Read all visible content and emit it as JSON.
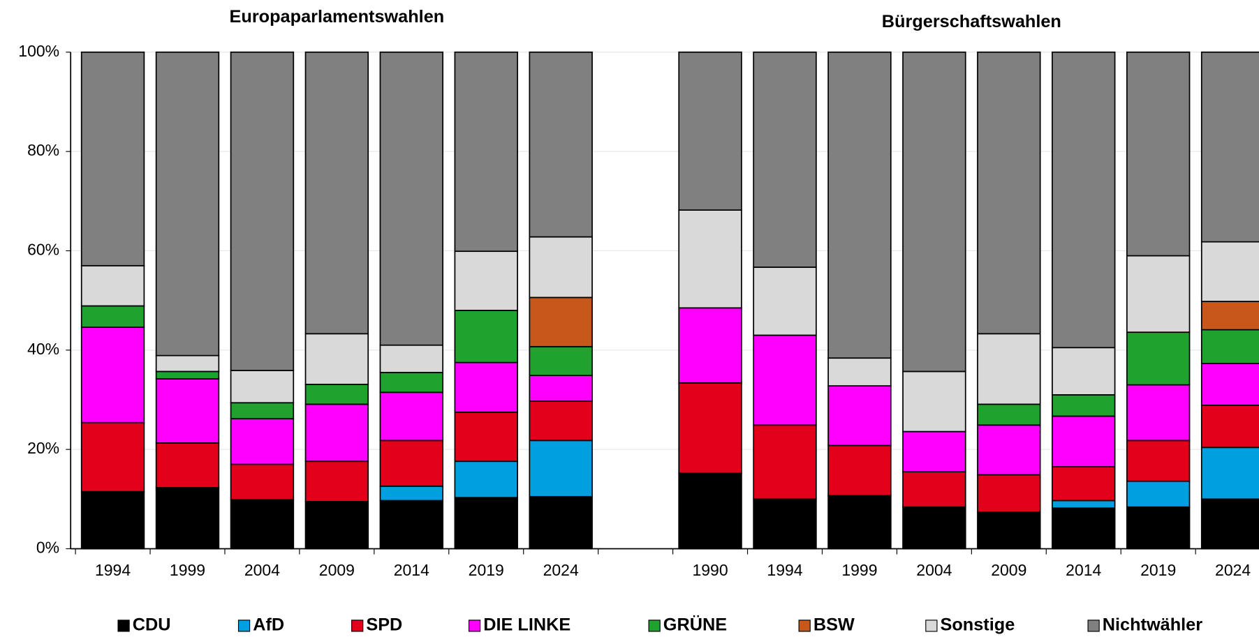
{
  "chart_data": {
    "type": "stacked_bar",
    "group_titles": [
      "Europaparlamentswahlen",
      "Bürgerschaftswahlen"
    ],
    "categories": [
      "1994",
      "1999",
      "2004",
      "2009",
      "2014",
      "2019",
      "2024",
      null,
      "1990",
      "1994",
      "1999",
      "2004",
      "2009",
      "2014",
      "2019",
      "2024"
    ],
    "series": [
      {
        "name": "CDU",
        "color": "#000000",
        "values": [
          11.5,
          12.3,
          9.9,
          9.5,
          9.7,
          10.3,
          10.5,
          null,
          15.2,
          10.0,
          10.7,
          8.4,
          7.4,
          8.2,
          8.4,
          10.0
        ]
      },
      {
        "name": "AfD",
        "color": "#00a0e0",
        "values": [
          null,
          null,
          null,
          null,
          2.9,
          7.3,
          11.3,
          null,
          null,
          null,
          null,
          null,
          null,
          1.5,
          5.2,
          10.4
        ]
      },
      {
        "name": "SPD",
        "color": "#e2001a",
        "values": [
          13.9,
          9.0,
          7.1,
          8.1,
          9.2,
          9.9,
          7.9,
          null,
          18.2,
          14.9,
          10.1,
          7.1,
          7.5,
          6.8,
          8.2,
          8.5
        ]
      },
      {
        "name": "DIE LINKE",
        "color": "#ff00ff",
        "values": [
          19.2,
          12.9,
          9.2,
          11.5,
          9.7,
          10.0,
          5.2,
          null,
          15.1,
          18.1,
          12.0,
          8.1,
          10.0,
          10.2,
          11.2,
          8.4
        ]
      },
      {
        "name": "GRÜNE",
        "color": "#1fa22e",
        "values": [
          4.3,
          1.5,
          3.2,
          4.0,
          4.0,
          10.5,
          5.8,
          null,
          null,
          null,
          null,
          null,
          4.2,
          4.3,
          10.6,
          6.8
        ]
      },
      {
        "name": "BSW",
        "color": "#c8571b",
        "values": [
          null,
          null,
          null,
          null,
          null,
          null,
          9.9,
          null,
          null,
          null,
          null,
          null,
          null,
          null,
          null,
          5.7
        ]
      },
      {
        "name": "Sonstige",
        "color": "#d9d9d9",
        "values": [
          8.1,
          3.2,
          6.5,
          10.2,
          5.5,
          11.9,
          12.2,
          null,
          19.7,
          13.7,
          5.6,
          12.1,
          14.2,
          9.5,
          15.4,
          12.0
        ]
      },
      {
        "name": "Nichtwähler",
        "color": "#808080",
        "values": [
          43.0,
          61.1,
          64.1,
          56.7,
          59.0,
          40.1,
          37.2,
          null,
          31.8,
          43.3,
          61.6,
          64.3,
          56.7,
          59.5,
          41.0,
          38.2
        ]
      }
    ],
    "ylim": [
      0,
      100
    ],
    "yticks": [
      {
        "value": 0,
        "label": "0%"
      },
      {
        "value": 20,
        "label": "20%"
      },
      {
        "value": 40,
        "label": "40%"
      },
      {
        "value": 60,
        "label": "60%"
      },
      {
        "value": 80,
        "label": "80%"
      },
      {
        "value": 100,
        "label": "100%"
      }
    ],
    "grid": true,
    "legend": "bottom"
  }
}
